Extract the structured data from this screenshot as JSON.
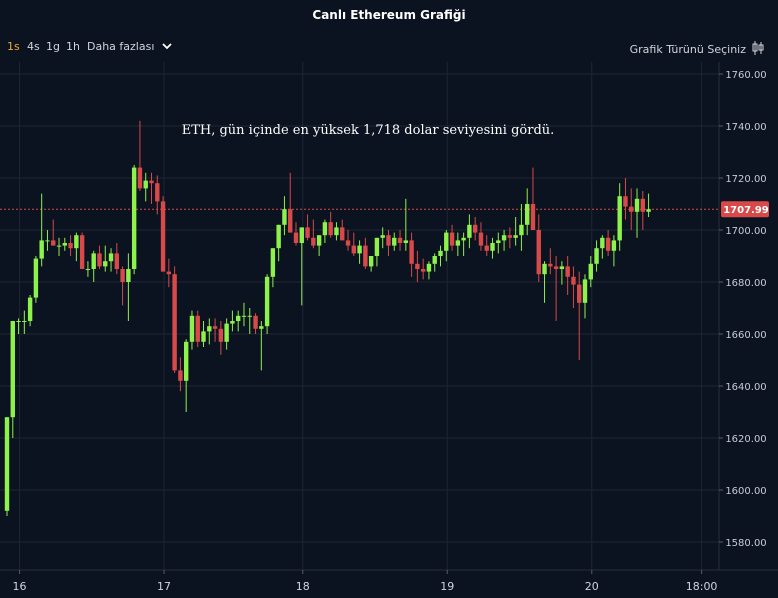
{
  "header": {
    "title": "Canlı Ethereum Grafiği"
  },
  "toolbar": {
    "timeframes": [
      "1s",
      "4s",
      "1g",
      "1h"
    ],
    "active_timeframe": "1s",
    "more_label": "Daha fazlası",
    "chart_type_label": "Grafik Türünü Seçiniz"
  },
  "colors": {
    "background": "#0b1220",
    "up": "#8df24b",
    "down": "#d84a4a",
    "price_line": "#d84a4a",
    "annotation": "#ffffff",
    "active_timeframe": "#f0a83a"
  },
  "chart_data": {
    "type": "candlestick",
    "annotation": "ETH, gün içinde en yüksek 1,718 dolar seviyesini gördü.",
    "current_price": 1707.99,
    "current_price_label": "1707.99",
    "ylim": [
      1570,
      1762
    ],
    "yticks": [
      1580,
      1600,
      1620,
      1640,
      1660,
      1680,
      1700,
      1720,
      1740,
      1760
    ],
    "ytick_labels": [
      "1580.00",
      "1600.00",
      "1620.00",
      "1640.00",
      "1660.00",
      "1680.00",
      "1700.00",
      "1720.00",
      "1740.00",
      "1760.00"
    ],
    "xlim": [
      0,
      119
    ],
    "xticks": [
      {
        "index": 2,
        "label": "16"
      },
      {
        "index": 27,
        "label": "17"
      },
      {
        "index": 51,
        "label": "18"
      },
      {
        "index": 76,
        "label": "19"
      },
      {
        "index": 101,
        "label": "20"
      },
      {
        "index": 120,
        "label": "18:00"
      }
    ],
    "grid": true,
    "candles": [
      [
        1592,
        1628,
        1590,
        1628
      ],
      [
        1628,
        1665,
        1620,
        1665
      ],
      [
        1665,
        1666,
        1660,
        1665
      ],
      [
        1665,
        1669,
        1660,
        1665
      ],
      [
        1665,
        1675,
        1663,
        1674
      ],
      [
        1674,
        1690,
        1672,
        1689
      ],
      [
        1689,
        1714,
        1686,
        1696
      ],
      [
        1696,
        1700,
        1692,
        1696
      ],
      [
        1696,
        1704,
        1694,
        1694
      ],
      [
        1694,
        1697,
        1690,
        1694
      ],
      [
        1694,
        1697,
        1692,
        1695
      ],
      [
        1695,
        1698,
        1690,
        1693
      ],
      [
        1693,
        1699,
        1688,
        1698
      ],
      [
        1698,
        1699,
        1685,
        1685
      ],
      [
        1685,
        1688,
        1682,
        1685
      ],
      [
        1685,
        1692,
        1680,
        1691
      ],
      [
        1691,
        1694,
        1685,
        1686
      ],
      [
        1686,
        1694,
        1684,
        1688
      ],
      [
        1688,
        1693,
        1684,
        1691
      ],
      [
        1691,
        1695,
        1683,
        1685
      ],
      [
        1685,
        1686,
        1671,
        1680
      ],
      [
        1680,
        1691,
        1665,
        1685
      ],
      [
        1685,
        1725,
        1683,
        1724
      ],
      [
        1724,
        1742,
        1715,
        1716
      ],
      [
        1716,
        1722,
        1711,
        1719
      ],
      [
        1719,
        1722,
        1710,
        1718
      ],
      [
        1718,
        1721,
        1706,
        1711
      ],
      [
        1711,
        1713,
        1684,
        1684
      ],
      [
        1684,
        1689,
        1678,
        1683
      ],
      [
        1683,
        1686,
        1645,
        1646
      ],
      [
        1646,
        1651,
        1638,
        1642
      ],
      [
        1642,
        1658,
        1630,
        1657
      ],
      [
        1657,
        1669,
        1654,
        1667
      ],
      [
        1667,
        1669,
        1655,
        1657
      ],
      [
        1657,
        1665,
        1655,
        1661
      ],
      [
        1661,
        1666,
        1656,
        1663
      ],
      [
        1663,
        1666,
        1657,
        1662
      ],
      [
        1662,
        1665,
        1652,
        1657
      ],
      [
        1657,
        1666,
        1654,
        1664
      ],
      [
        1664,
        1669,
        1661,
        1665
      ],
      [
        1665,
        1669,
        1661,
        1667
      ],
      [
        1667,
        1672,
        1663,
        1667
      ],
      [
        1667,
        1670,
        1660,
        1667
      ],
      [
        1667,
        1668,
        1660,
        1662
      ],
      [
        1662,
        1665,
        1646,
        1663
      ],
      [
        1663,
        1683,
        1660,
        1682
      ],
      [
        1682,
        1693,
        1678,
        1693
      ],
      [
        1693,
        1702,
        1688,
        1702
      ],
      [
        1702,
        1713,
        1698,
        1708
      ],
      [
        1708,
        1722,
        1699,
        1699
      ],
      [
        1699,
        1703,
        1694,
        1695
      ],
      [
        1695,
        1701,
        1671,
        1701
      ],
      [
        1701,
        1706,
        1696,
        1697
      ],
      [
        1697,
        1704,
        1693,
        1694
      ],
      [
        1694,
        1698,
        1690,
        1698
      ],
      [
        1698,
        1704,
        1695,
        1703
      ],
      [
        1703,
        1707,
        1697,
        1698
      ],
      [
        1698,
        1703,
        1696,
        1701
      ],
      [
        1701,
        1704,
        1697,
        1696
      ],
      [
        1696,
        1700,
        1692,
        1694
      ],
      [
        1694,
        1699,
        1690,
        1691
      ],
      [
        1691,
        1696,
        1687,
        1694
      ],
      [
        1694,
        1697,
        1685,
        1686
      ],
      [
        1686,
        1690,
        1684,
        1690
      ],
      [
        1690,
        1697,
        1686,
        1697
      ],
      [
        1697,
        1701,
        1693,
        1698
      ],
      [
        1698,
        1700,
        1690,
        1694
      ],
      [
        1694,
        1699,
        1692,
        1697
      ],
      [
        1697,
        1700,
        1692,
        1695
      ],
      [
        1695,
        1712,
        1692,
        1696
      ],
      [
        1696,
        1699,
        1682,
        1687
      ],
      [
        1687,
        1692,
        1680,
        1685
      ],
      [
        1685,
        1689,
        1681,
        1684
      ],
      [
        1684,
        1688,
        1681,
        1687
      ],
      [
        1687,
        1691,
        1684,
        1690
      ],
      [
        1690,
        1694,
        1686,
        1692
      ],
      [
        1692,
        1700,
        1688,
        1699
      ],
      [
        1699,
        1702,
        1692,
        1694
      ],
      [
        1694,
        1699,
        1690,
        1696
      ],
      [
        1696,
        1699,
        1690,
        1697
      ],
      [
        1697,
        1706,
        1693,
        1702
      ],
      [
        1702,
        1705,
        1696,
        1699
      ],
      [
        1699,
        1703,
        1692,
        1694
      ],
      [
        1694,
        1698,
        1690,
        1692
      ],
      [
        1692,
        1697,
        1689,
        1695
      ],
      [
        1695,
        1699,
        1691,
        1696
      ],
      [
        1696,
        1700,
        1692,
        1698
      ],
      [
        1698,
        1701,
        1693,
        1697
      ],
      [
        1697,
        1705,
        1694,
        1698
      ],
      [
        1698,
        1710,
        1692,
        1702
      ],
      [
        1702,
        1716,
        1698,
        1710
      ],
      [
        1710,
        1724,
        1700,
        1700
      ],
      [
        1700,
        1706,
        1680,
        1683
      ],
      [
        1683,
        1688,
        1672,
        1687
      ],
      [
        1687,
        1693,
        1683,
        1686
      ],
      [
        1686,
        1690,
        1665,
        1685
      ],
      [
        1685,
        1688,
        1679,
        1686
      ],
      [
        1686,
        1690,
        1675,
        1682
      ],
      [
        1682,
        1686,
        1670,
        1679
      ],
      [
        1679,
        1684,
        1650,
        1672
      ],
      [
        1672,
        1683,
        1666,
        1681
      ],
      [
        1681,
        1690,
        1678,
        1687
      ],
      [
        1687,
        1696,
        1684,
        1693
      ],
      [
        1693,
        1698,
        1689,
        1697
      ],
      [
        1697,
        1700,
        1690,
        1692
      ],
      [
        1692,
        1698,
        1686,
        1696
      ],
      [
        1696,
        1718,
        1692,
        1713
      ],
      [
        1713,
        1720,
        1704,
        1709
      ],
      [
        1709,
        1716,
        1700,
        1707
      ],
      [
        1707,
        1716,
        1697,
        1712
      ],
      [
        1712,
        1715,
        1700,
        1707
      ],
      [
        1707,
        1714,
        1705,
        1708
      ]
    ]
  }
}
